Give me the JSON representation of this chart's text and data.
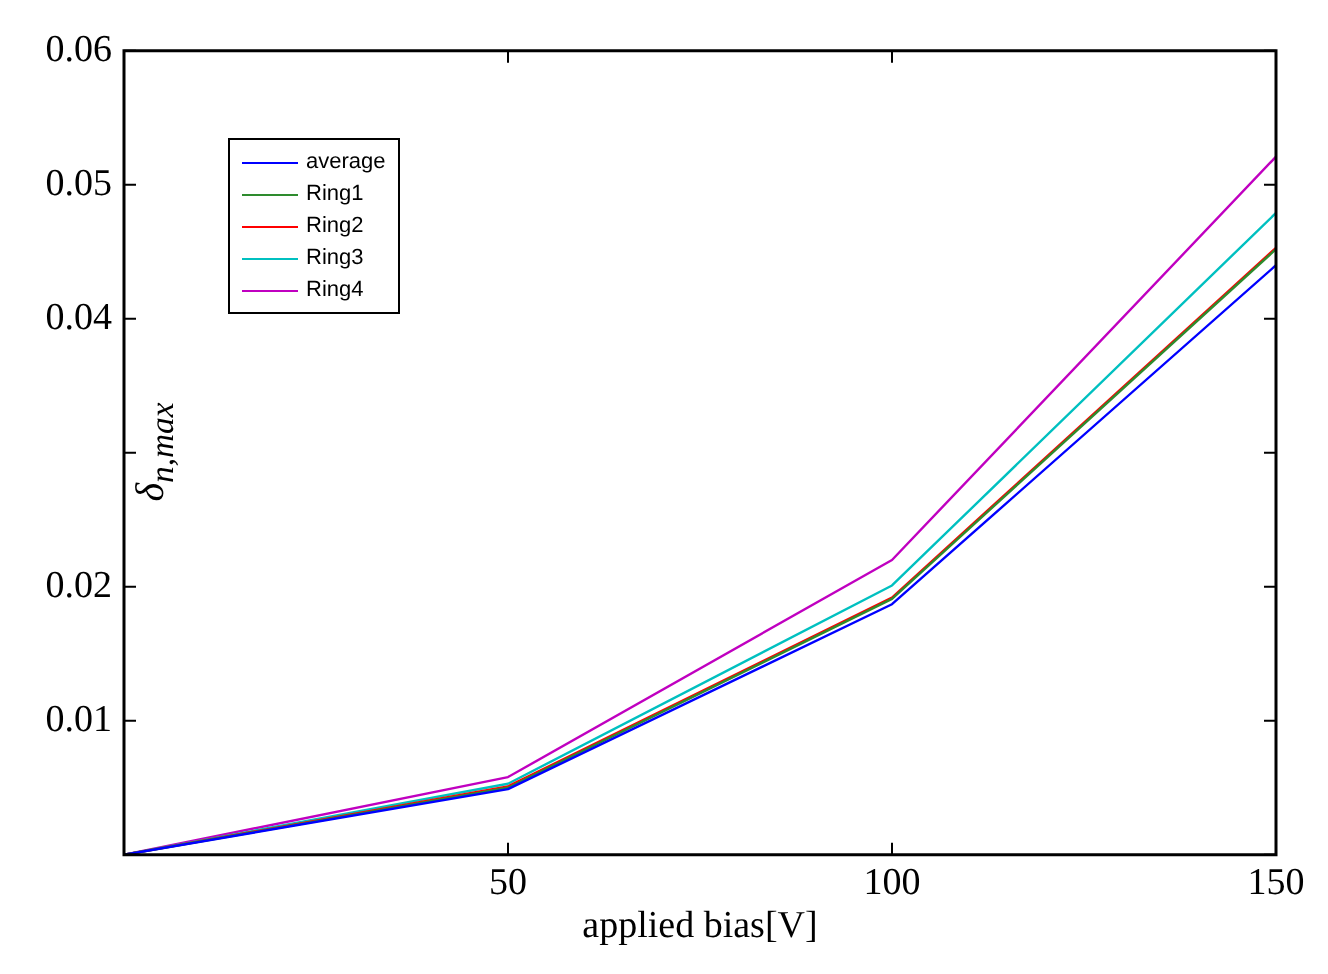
{
  "chart_data": {
    "type": "line",
    "xlabel": "applied bias[V]",
    "ylabel": "δ$_{n,max}$",
    "x": [
      0,
      50,
      100,
      150
    ],
    "series": [
      {
        "name": "average",
        "color": "#0000ff",
        "values": [
          0,
          0.0049,
          0.0187,
          0.044
        ]
      },
      {
        "name": "Ring1",
        "color": "#2e8b2e",
        "values": [
          0,
          0.005,
          0.0191,
          0.0452
        ]
      },
      {
        "name": "Ring2",
        "color": "#ff0000",
        "values": [
          0,
          0.0051,
          0.0192,
          0.0453
        ]
      },
      {
        "name": "Ring3",
        "color": "#00c0c0",
        "values": [
          0,
          0.0053,
          0.0201,
          0.0479
        ]
      },
      {
        "name": "Ring4",
        "color": "#c000c0",
        "values": [
          0,
          0.0058,
          0.022,
          0.0521
        ]
      }
    ],
    "xlim": [
      0,
      150
    ],
    "xticks": [
      {
        "value": 0,
        "label": null
      },
      50,
      100,
      150
    ],
    "ylim": [
      0,
      0.06
    ],
    "yticks": [
      {
        "value": 0,
        "label": null
      },
      0.01,
      0.02,
      {
        "value": 0.03,
        "label": null
      },
      0.04,
      0.05,
      0.06
    ],
    "grid": false,
    "legend": "top left",
    "marker": "none",
    "line_style": "solid"
  }
}
